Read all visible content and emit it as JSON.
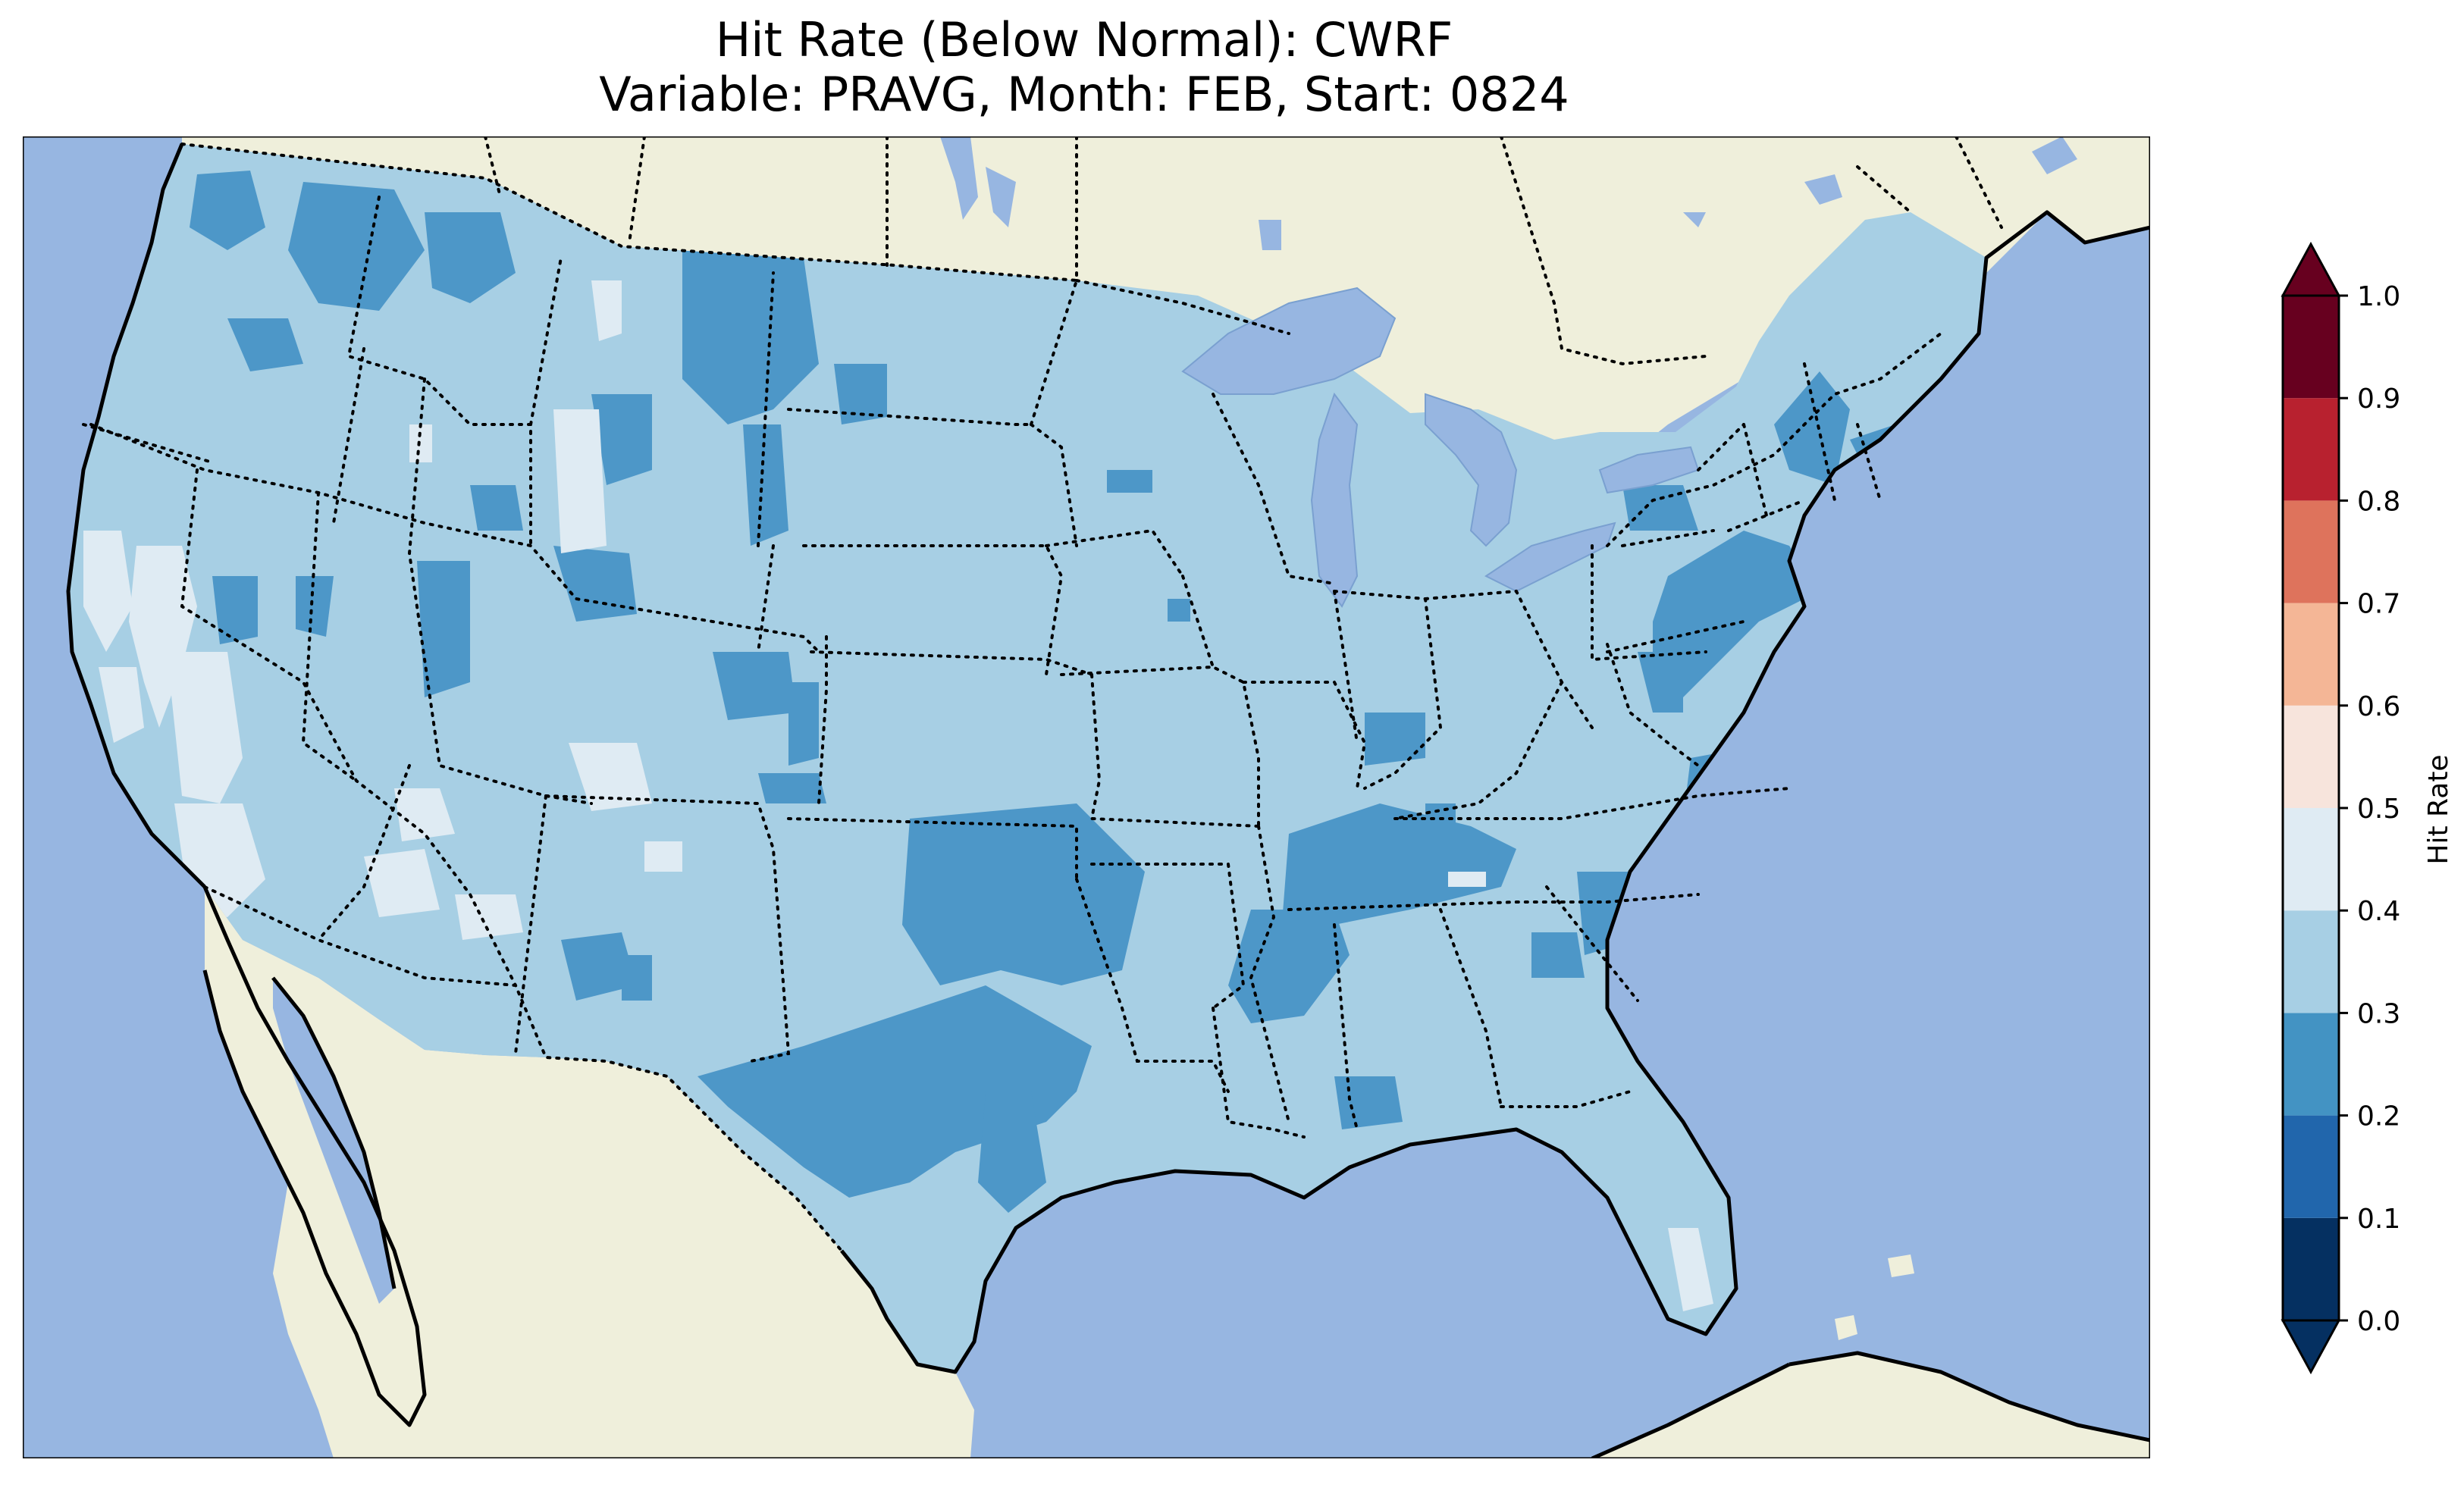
{
  "title": {
    "line1": "Hit Rate (Below Normal): CWRF",
    "line2": "Variable: PRAVG, Month: FEB, Start: 0824"
  },
  "colors": {
    "ocean": "#97b6e1",
    "land": "#efefdb",
    "lakes": "#97b6e1",
    "bin_0.2_0.3": "#4d97c8",
    "bin_0.3_0.4": "#a7cfe4",
    "bin_0.4_0.5": "#dfebf3"
  },
  "colorbar": {
    "label": "Hit Rate",
    "ticks": [
      "0.0",
      "0.1",
      "0.2",
      "0.3",
      "0.4",
      "0.5",
      "0.6",
      "0.7",
      "0.8",
      "0.9",
      "1.0"
    ],
    "bins": [
      {
        "range": [
          0.0,
          0.1
        ],
        "color": "#053061"
      },
      {
        "range": [
          0.1,
          0.2
        ],
        "color": "#2166ac"
      },
      {
        "range": [
          0.2,
          0.3
        ],
        "color": "#4393c3"
      },
      {
        "range": [
          0.3,
          0.4
        ],
        "color": "#a7cfe4"
      },
      {
        "range": [
          0.4,
          0.5
        ],
        "color": "#dfebf3"
      },
      {
        "range": [
          0.5,
          0.6
        ],
        "color": "#f7e4dc"
      },
      {
        "range": [
          0.6,
          0.7
        ],
        "color": "#f4b696"
      },
      {
        "range": [
          0.7,
          0.8
        ],
        "color": "#de735c"
      },
      {
        "range": [
          0.8,
          0.9
        ],
        "color": "#b8212f"
      },
      {
        "range": [
          0.9,
          1.0
        ],
        "color": "#67001f"
      }
    ],
    "extend": "both",
    "under_color": "#053061",
    "over_color": "#67001f"
  }
}
